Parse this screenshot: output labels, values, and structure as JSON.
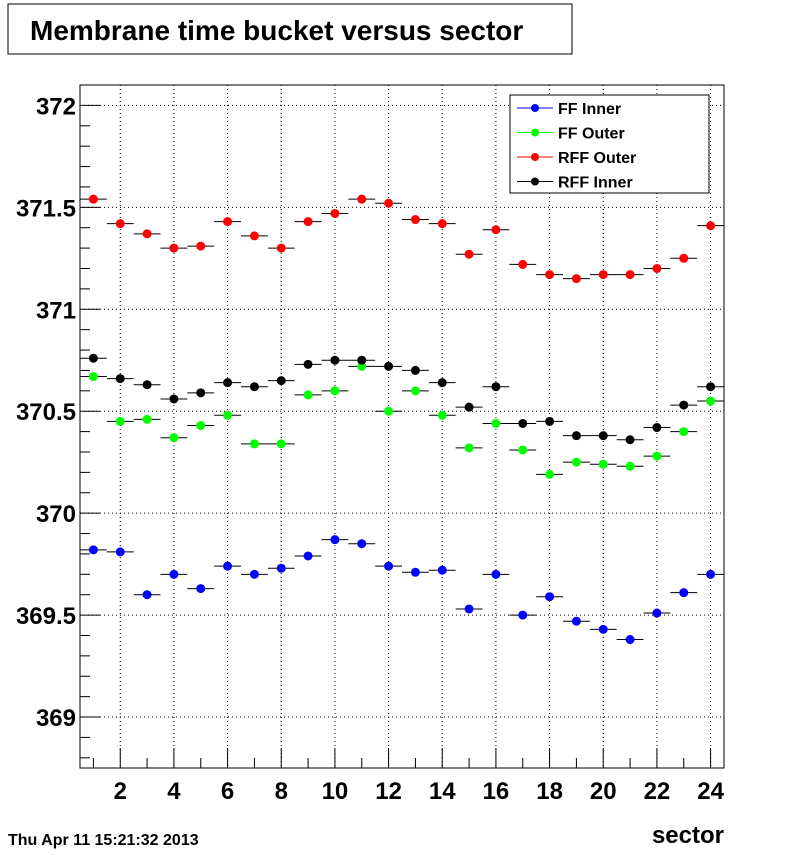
{
  "chart_data": {
    "type": "scatter",
    "title": "Membrane time bucket versus sector",
    "xlabel": "sector",
    "ylabel": "",
    "xlim": [
      0.5,
      24.5
    ],
    "ylim": [
      368.75,
      372.1
    ],
    "x_major_ticks": [
      2,
      4,
      6,
      8,
      10,
      12,
      14,
      16,
      18,
      20,
      22,
      24
    ],
    "x_tick_labels": [
      "2",
      "4",
      "6",
      "8",
      "10",
      "12",
      "14",
      "16",
      "18",
      "20",
      "22",
      "24"
    ],
    "y_major_ticks": [
      369,
      369.5,
      370,
      370.5,
      371,
      371.5,
      372
    ],
    "y_tick_labels": [
      "369",
      "369.5",
      "370",
      "370.5",
      "371",
      "371.5",
      "372"
    ],
    "grid": true,
    "legend_position": "top-right",
    "x": [
      1,
      2,
      3,
      4,
      5,
      6,
      7,
      8,
      9,
      10,
      11,
      12,
      13,
      14,
      15,
      16,
      17,
      18,
      19,
      20,
      21,
      22,
      23,
      24
    ],
    "series": [
      {
        "name": "FF Inner",
        "color": "#0000ff",
        "values": [
          369.82,
          369.81,
          369.6,
          369.7,
          369.63,
          369.74,
          369.7,
          369.73,
          369.79,
          369.87,
          369.85,
          369.74,
          369.71,
          369.72,
          369.53,
          369.7,
          369.5,
          369.59,
          369.47,
          369.43,
          369.38,
          369.51,
          369.61,
          369.7
        ]
      },
      {
        "name": "FF Outer",
        "color": "#00ff00",
        "values": [
          370.67,
          370.45,
          370.46,
          370.37,
          370.43,
          370.48,
          370.34,
          370.34,
          370.58,
          370.6,
          370.72,
          370.5,
          370.6,
          370.48,
          370.32,
          370.44,
          370.31,
          370.19,
          370.25,
          370.24,
          370.23,
          370.28,
          370.4,
          370.55
        ]
      },
      {
        "name": "RFF Outer",
        "color": "#ff0000",
        "values": [
          371.54,
          371.42,
          371.37,
          371.3,
          371.31,
          371.43,
          371.36,
          371.3,
          371.43,
          371.47,
          371.54,
          371.52,
          371.44,
          371.42,
          371.27,
          371.39,
          371.22,
          371.17,
          371.15,
          371.17,
          371.17,
          371.2,
          371.25,
          371.41
        ]
      },
      {
        "name": "RFF Inner",
        "color": "#000000",
        "values": [
          370.76,
          370.66,
          370.63,
          370.56,
          370.59,
          370.64,
          370.62,
          370.65,
          370.73,
          370.75,
          370.75,
          370.72,
          370.7,
          370.64,
          370.52,
          370.62,
          370.44,
          370.45,
          370.38,
          370.38,
          370.36,
          370.42,
          370.53,
          370.62
        ]
      }
    ]
  },
  "timestamp": "Thu Apr 11 15:21:32 2013"
}
